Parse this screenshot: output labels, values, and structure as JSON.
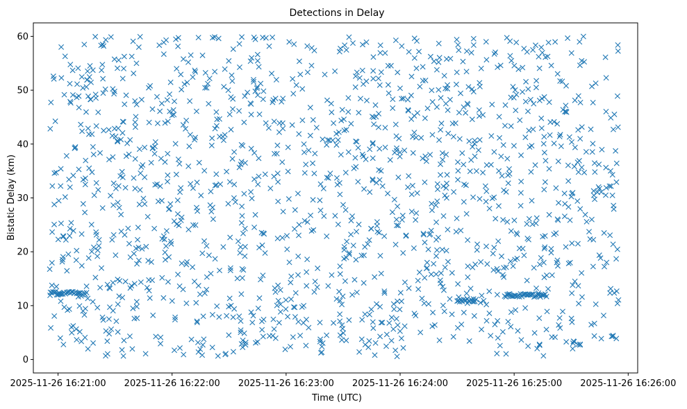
{
  "chart_data": {
    "type": "scatter",
    "title": "Detections in Delay",
    "xlabel": "Time (UTC)",
    "ylabel": "Bistatic Delay (km)",
    "marker": "x",
    "color": "#1f77b4",
    "grid": false,
    "legend": "none",
    "x_range": [
      "2025-11-26 16:20:47",
      "2025-11-26 16:26:05"
    ],
    "y_range": [
      -2.5,
      62.5
    ],
    "x_ticks": [
      "2025-11-26 16:21:00",
      "2025-11-26 16:22:00",
      "2025-11-26 16:23:00",
      "2025-11-26 16:24:00",
      "2025-11-26 16:25:00",
      "2025-11-26 16:26:00"
    ],
    "y_ticks": [
      "0",
      "10",
      "20",
      "30",
      "40",
      "50",
      "60"
    ],
    "y_tick_values": [
      0,
      10,
      20,
      30,
      40,
      50,
      60
    ],
    "time_start": "2025-11-26 16:20:55",
    "time_end": "2025-11-26 16:25:55",
    "delay_range": [
      0.5,
      60.0
    ],
    "approx_point_count": 1500,
    "clusters": [
      {
        "start": "2025-11-26 16:20:56",
        "end": "2025-11-26 16:21:15",
        "delay": 12.3
      },
      {
        "start": "2025-11-26 16:24:30",
        "end": "2025-11-26 16:24:40",
        "delay": 11.0
      },
      {
        "start": "2025-11-26 16:24:55",
        "end": "2025-11-26 16:25:17",
        "delay": 11.9
      }
    ]
  }
}
